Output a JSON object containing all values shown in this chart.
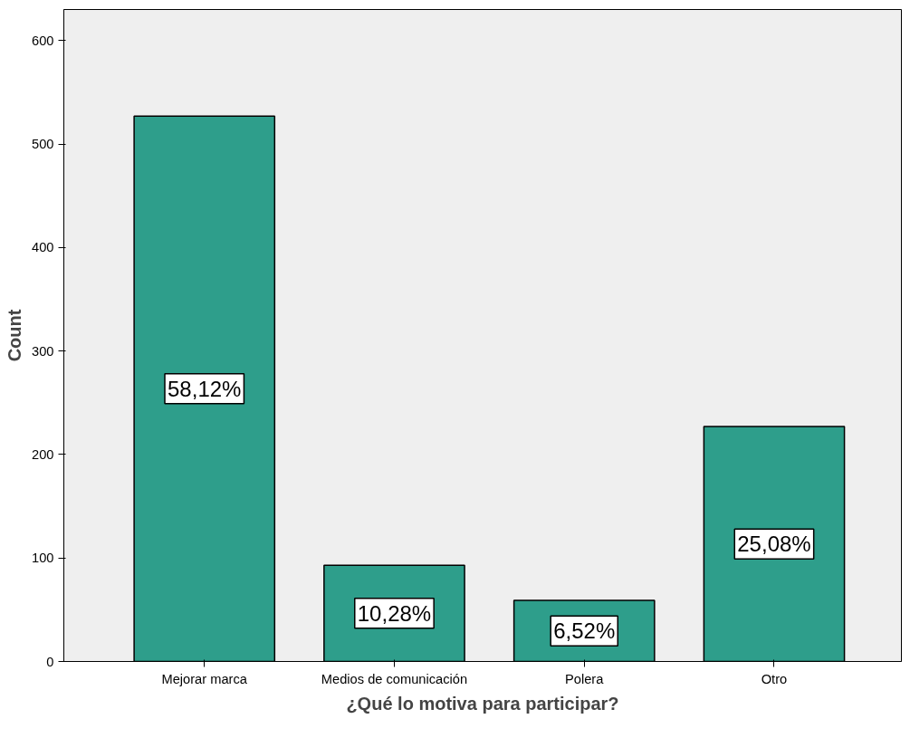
{
  "chart_data": {
    "type": "bar",
    "xlabel": "¿Qué lo motiva para participar?",
    "ylabel": "Count",
    "categories": [
      "Mejorar marca",
      "Medios de comunicación",
      "Polera",
      "Otro"
    ],
    "values": [
      527,
      93,
      59,
      227
    ],
    "annotations": [
      "58,12%",
      "10,28%",
      "6,52%",
      "25,08%"
    ],
    "color": "#2e9e8b",
    "ylim": [
      0,
      630
    ],
    "yticks": [
      0,
      100,
      200,
      300,
      400,
      500,
      600
    ],
    "grid": false
  }
}
